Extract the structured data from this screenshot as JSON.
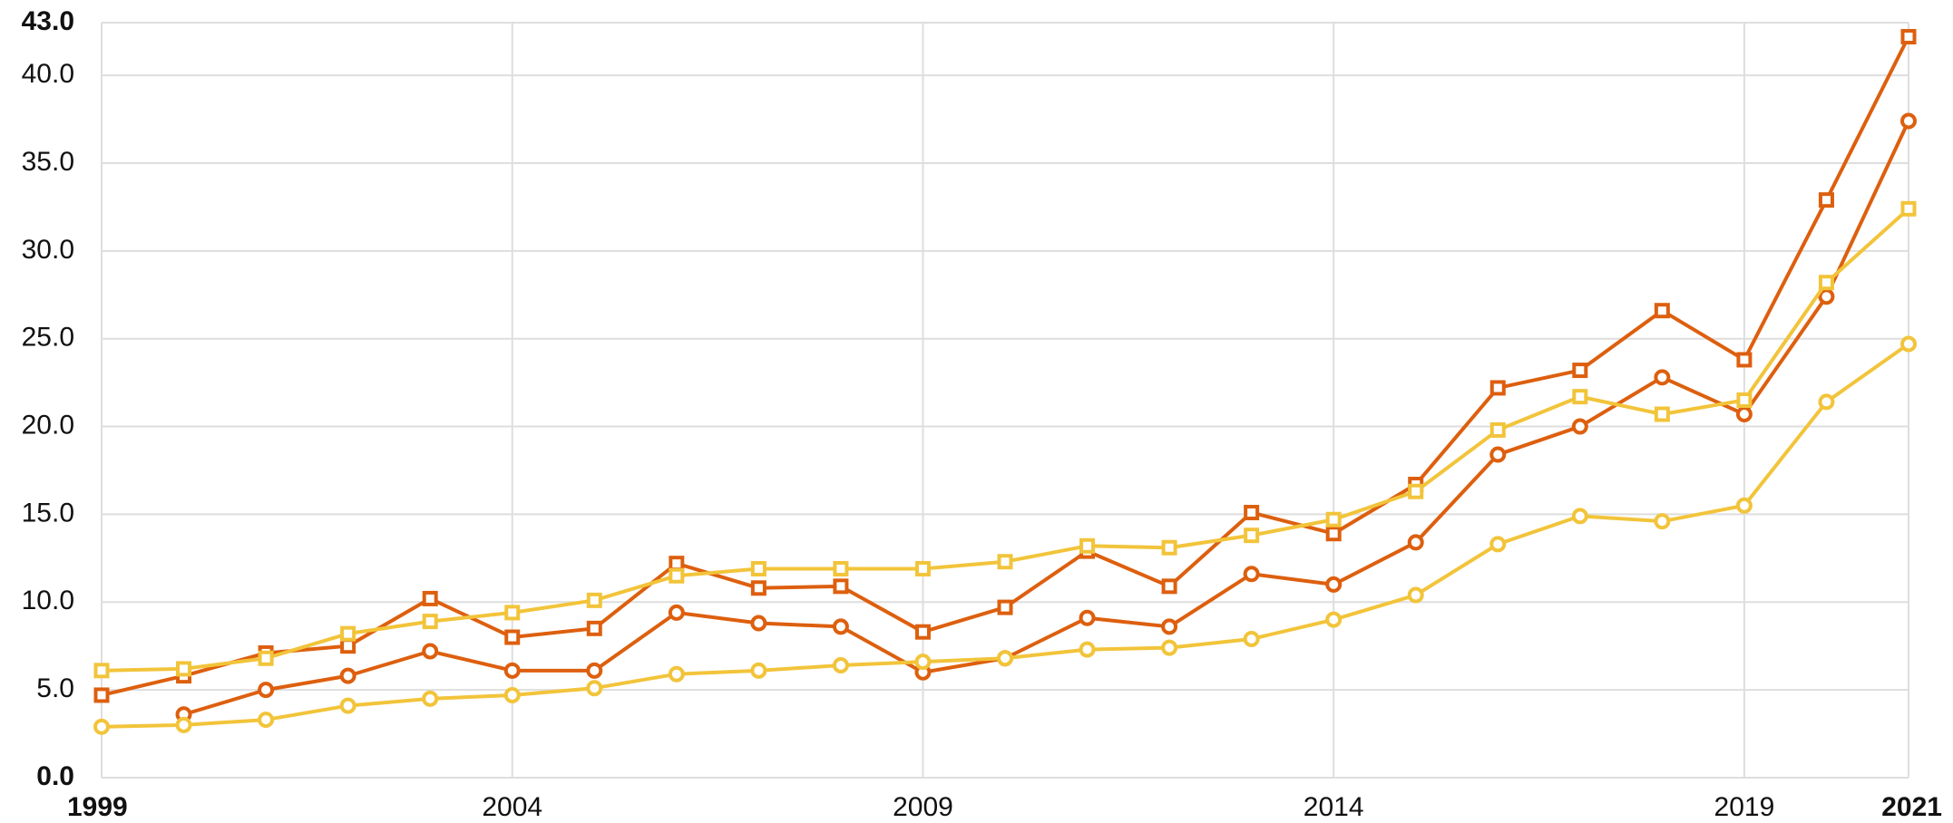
{
  "chart_data": {
    "type": "line",
    "x": [
      1999,
      2000,
      2001,
      2002,
      2003,
      2004,
      2005,
      2006,
      2007,
      2008,
      2009,
      2010,
      2011,
      2012,
      2013,
      2014,
      2015,
      2016,
      2017,
      2018,
      2019,
      2020,
      2021
    ],
    "series": [
      {
        "color": "#dd5f0e",
        "marker": "square",
        "values": [
          4.7,
          5.8,
          7.1,
          7.5,
          10.2,
          8.0,
          8.5,
          12.2,
          10.8,
          10.9,
          8.3,
          9.7,
          12.9,
          10.9,
          15.1,
          13.9,
          16.7,
          22.2,
          23.2,
          26.6,
          23.8,
          32.9,
          42.2
        ]
      },
      {
        "color": "#dd5f0e",
        "marker": "circle",
        "values": [
          null,
          3.6,
          5.0,
          5.8,
          7.2,
          6.1,
          6.1,
          9.4,
          8.8,
          8.6,
          6.0,
          6.8,
          9.1,
          8.6,
          11.6,
          11.0,
          13.4,
          18.4,
          20.0,
          22.8,
          20.7,
          27.4,
          37.4
        ]
      },
      {
        "color": "#f2c43a",
        "marker": "square",
        "values": [
          6.1,
          6.2,
          6.8,
          8.2,
          8.9,
          9.4,
          10.1,
          11.5,
          11.9,
          11.9,
          11.9,
          12.3,
          13.2,
          13.1,
          13.8,
          14.7,
          16.3,
          19.8,
          21.7,
          20.7,
          21.5,
          28.2,
          32.4
        ]
      },
      {
        "color": "#f2c43a",
        "marker": "circle",
        "values": [
          2.9,
          3.0,
          3.3,
          4.1,
          4.5,
          4.7,
          5.1,
          5.9,
          6.1,
          6.4,
          6.6,
          6.8,
          7.3,
          7.4,
          7.9,
          9.0,
          10.4,
          13.3,
          14.9,
          14.6,
          15.5,
          21.4,
          24.7
        ]
      }
    ],
    "xlim": [
      1999,
      2021
    ],
    "xticks": [
      1999,
      2004,
      2009,
      2014,
      2019,
      2021
    ],
    "ylim": [
      0,
      43
    ],
    "yticks": [
      {
        "value": 0,
        "label": "0.0"
      },
      {
        "value": 5,
        "label": "5.0"
      },
      {
        "value": 10,
        "label": "10.0"
      },
      {
        "value": 15,
        "label": "15.0"
      },
      {
        "value": 20,
        "label": "20.0"
      },
      {
        "value": 25,
        "label": "25.0"
      },
      {
        "value": 30,
        "label": "30.0"
      },
      {
        "value": 35,
        "label": "35.0"
      },
      {
        "value": 40,
        "label": "40.0"
      },
      {
        "value": 43,
        "label": "43.0"
      }
    ],
    "grid": true
  }
}
